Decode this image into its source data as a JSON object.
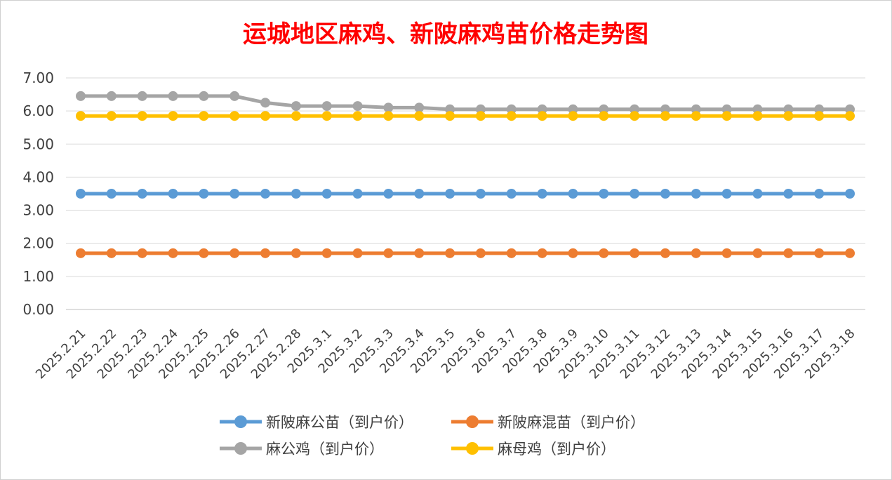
{
  "chart_data": {
    "type": "line",
    "title": "运城地区麻鸡、新陂麻鸡苗价格走势图",
    "xlabel": "",
    "ylabel": "",
    "ylim": [
      0,
      7
    ],
    "yticks": [
      "0.00",
      "1.00",
      "2.00",
      "3.00",
      "4.00",
      "5.00",
      "6.00",
      "7.00"
    ],
    "grid": true,
    "legend_position": "bottom",
    "categories": [
      "2025.2.21",
      "2025.2.22",
      "2025.2.23",
      "2025.2.24",
      "2025.2.25",
      "2025.2.26",
      "2025.2.27",
      "2025.2.28",
      "2025.3.1",
      "2025.3.2",
      "2025.3.3",
      "2025.3.4",
      "2025.3.5",
      "2025.3.6",
      "2025.3.7",
      "2025.3.8",
      "2025.3.9",
      "2025.3.10",
      "2025.3.11",
      "2025.3.12",
      "2025.3.13",
      "2025.3.14",
      "2025.3.15",
      "2025.3.16",
      "2025.3.17",
      "2025.3.18"
    ],
    "series": [
      {
        "name": "新陂麻公苗（到户价）",
        "color": "#5b9bd5",
        "values": [
          3.5,
          3.5,
          3.5,
          3.5,
          3.5,
          3.5,
          3.5,
          3.5,
          3.5,
          3.5,
          3.5,
          3.5,
          3.5,
          3.5,
          3.5,
          3.5,
          3.5,
          3.5,
          3.5,
          3.5,
          3.5,
          3.5,
          3.5,
          3.5,
          3.5,
          3.5
        ]
      },
      {
        "name": "新陂麻混苗（到户价）",
        "color": "#ed7d31",
        "values": [
          1.7,
          1.7,
          1.7,
          1.7,
          1.7,
          1.7,
          1.7,
          1.7,
          1.7,
          1.7,
          1.7,
          1.7,
          1.7,
          1.7,
          1.7,
          1.7,
          1.7,
          1.7,
          1.7,
          1.7,
          1.7,
          1.7,
          1.7,
          1.7,
          1.7,
          1.7
        ]
      },
      {
        "name": "麻公鸡（到户价）",
        "color": "#a5a5a5",
        "values": [
          6.45,
          6.45,
          6.45,
          6.45,
          6.45,
          6.45,
          6.25,
          6.15,
          6.15,
          6.15,
          6.1,
          6.1,
          6.05,
          6.05,
          6.05,
          6.05,
          6.05,
          6.05,
          6.05,
          6.05,
          6.05,
          6.05,
          6.05,
          6.05,
          6.05,
          6.05
        ]
      },
      {
        "name": "麻母鸡（到户价）",
        "color": "#ffc000",
        "values": [
          5.85,
          5.85,
          5.85,
          5.85,
          5.85,
          5.85,
          5.85,
          5.85,
          5.85,
          5.85,
          5.85,
          5.85,
          5.85,
          5.85,
          5.85,
          5.85,
          5.85,
          5.85,
          5.85,
          5.85,
          5.85,
          5.85,
          5.85,
          5.85,
          5.85,
          5.85
        ]
      }
    ]
  }
}
